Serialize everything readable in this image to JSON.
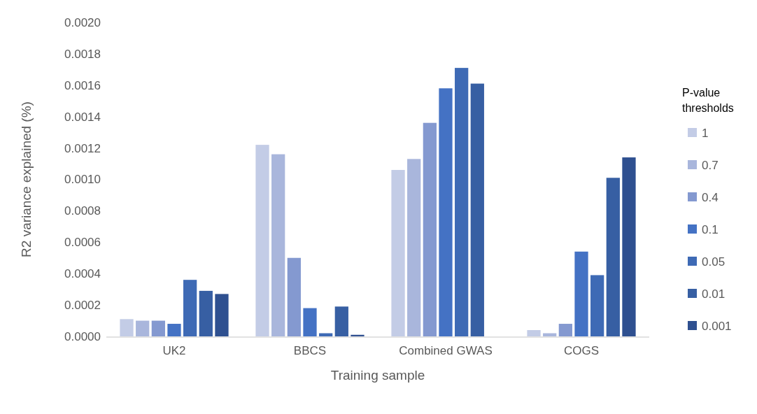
{
  "chart_data": {
    "type": "bar",
    "xlabel": "Training sample",
    "ylabel": "R2 variance explained (%)",
    "legend_title": "P-value thresholds",
    "legend": "right",
    "categories": [
      "UK2",
      "BBCS",
      "Combined GWAS",
      "COGS"
    ],
    "ylim": [
      0,
      0.002
    ],
    "yticks": [
      {
        "value": 0,
        "label": "0.0000"
      },
      {
        "value": 0.0002,
        "label": "0.0002"
      },
      {
        "value": 0.0004,
        "label": "0.0004"
      },
      {
        "value": 0.0006,
        "label": "0.0006"
      },
      {
        "value": 0.0008,
        "label": "0.0008"
      },
      {
        "value": 0.001,
        "label": "0.0010"
      },
      {
        "value": 0.0012,
        "label": "0.0012"
      },
      {
        "value": 0.0014,
        "label": "0.0014"
      },
      {
        "value": 0.0016,
        "label": "0.0016"
      },
      {
        "value": 0.0018,
        "label": "0.0018"
      },
      {
        "value": 0.002,
        "label": "0.0020"
      }
    ],
    "series": [
      {
        "name": "1",
        "color": "#c3cce6",
        "values": [
          0.00011,
          0.00122,
          0.00106,
          4e-05
        ]
      },
      {
        "name": "0.7",
        "color": "#a9b6dc",
        "values": [
          0.0001,
          0.00116,
          0.00113,
          2e-05
        ]
      },
      {
        "name": "0.4",
        "color": "#8499d0",
        "values": [
          0.0001,
          0.0005,
          0.00136,
          8e-05
        ]
      },
      {
        "name": "0.1",
        "color": "#4472c4",
        "values": [
          8e-05,
          0.00018,
          0.00158,
          0.00054
        ]
      },
      {
        "name": "0.05",
        "color": "#3e6ab5",
        "values": [
          0.00036,
          2e-05,
          0.00171,
          0.00039
        ]
      },
      {
        "name": "0.01",
        "color": "#375fa3",
        "values": [
          0.00029,
          0.00019,
          0.00161,
          0.00101
        ]
      },
      {
        "name": "0.001",
        "color": "#2f5090",
        "values": [
          0.00027,
          1e-05,
          null,
          0.00114
        ]
      }
    ]
  }
}
